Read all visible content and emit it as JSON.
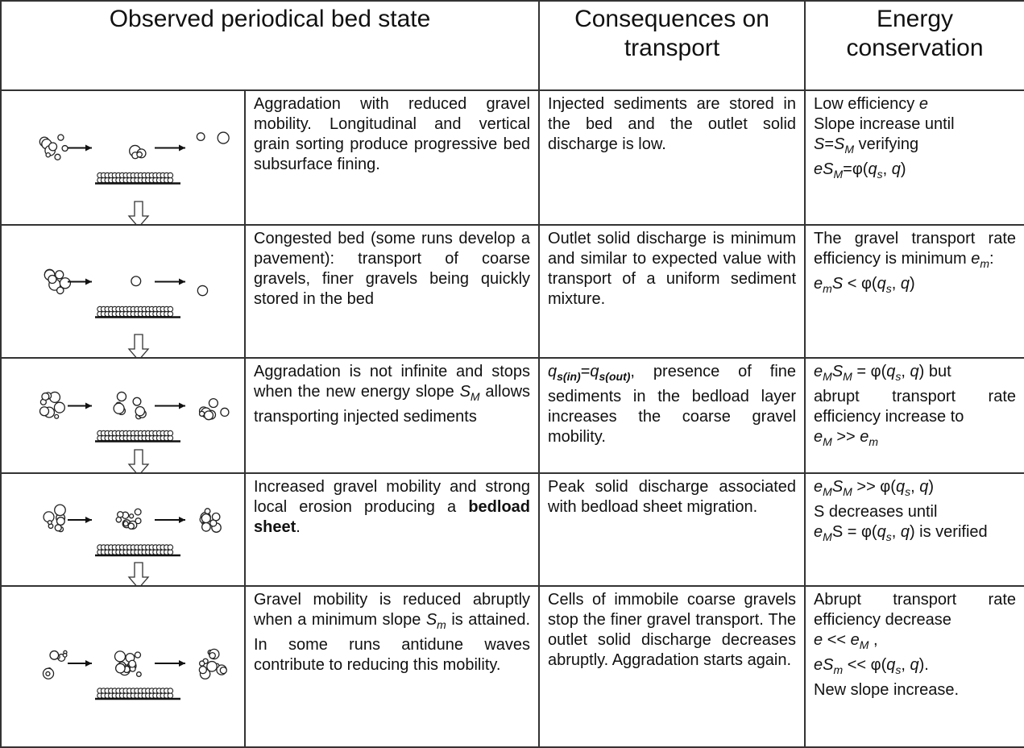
{
  "table": {
    "header": [
      "Observed periodical bed state",
      "Consequences on transport",
      "Energy conservation"
    ],
    "rows": [
      {
        "description": [
          [
            "Aggradation with reduced gravel mobility. Longitudinal and vertical grain sorting produce progressive bed subsurface fining."
          ]
        ],
        "transport": [
          [
            "Injected sediments are stored in the bed and the outlet solid discharge is low."
          ]
        ],
        "energy": [
          [
            "Low efficiency ",
            {
              "text": "e",
              "style": "italic"
            }
          ],
          [
            "Slope increase until"
          ],
          [
            {
              "text": "S",
              "style": "italic"
            },
            "=",
            {
              "text": "S",
              "style": "italic"
            },
            {
              "text": "M",
              "style": "sub"
            },
            " verifying"
          ],
          [
            {
              "text": "eS",
              "style": "italic"
            },
            {
              "text": "M",
              "style": "sub"
            },
            "=φ(",
            {
              "text": "q",
              "style": "italic"
            },
            {
              "text": "s",
              "style": "sub"
            },
            ", ",
            {
              "text": "q",
              "style": "italic"
            },
            ")"
          ]
        ]
      },
      {
        "description": [
          [
            "Congested bed (some runs develop a pavement): transport of coarse gravels, finer gravels being quickly stored in the bed"
          ]
        ],
        "transport": [
          [
            "Outlet solid discharge is minimum and similar to expected value with transport of a uniform sediment mixture."
          ]
        ],
        "energy": [
          [
            "The gravel transport rate efficiency is minimum ",
            {
              "text": "e",
              "style": "italic"
            },
            {
              "text": "m",
              "style": "sub"
            },
            ":"
          ],
          [
            {
              "text": "e",
              "style": "italic"
            },
            {
              "text": "m",
              "style": "sub"
            },
            {
              "text": "S",
              "style": "italic"
            },
            " < φ(",
            {
              "text": "q",
              "style": "italic"
            },
            {
              "text": "s",
              "style": "sub"
            },
            ", ",
            {
              "text": "q",
              "style": "italic"
            },
            ")"
          ]
        ]
      },
      {
        "description": [
          [
            "Aggradation is not infinite and stops when the new energy slope ",
            {
              "text": "S",
              "style": "italic"
            },
            {
              "text": "M",
              "style": "sub"
            },
            " allows transporting injected sediments"
          ]
        ],
        "transport": [
          [
            {
              "text": "q",
              "style": "italic"
            },
            {
              "text": "s(in)",
              "style": "sub-bold"
            },
            "=",
            {
              "text": "q",
              "style": "italic"
            },
            {
              "text": "s(out)",
              "style": "sub-bold"
            },
            ", presence of fine sediments in the bedload layer increases the coarse gravel mobility."
          ]
        ],
        "energy": [
          [
            {
              "text": "e",
              "style": "italic"
            },
            {
              "text": "M",
              "style": "sub"
            },
            {
              "text": "S",
              "style": "italic"
            },
            {
              "text": "M",
              "style": "sub"
            },
            " = φ(",
            {
              "text": "q",
              "style": "italic"
            },
            {
              "text": "s",
              "style": "sub"
            },
            ", ",
            {
              "text": "q",
              "style": "italic"
            },
            ") but"
          ],
          [
            "abrupt transport rate efficiency increase to"
          ],
          [
            {
              "text": "e",
              "style": "italic"
            },
            {
              "text": "M",
              "style": "sub"
            },
            " >> ",
            {
              "text": "e",
              "style": "italic"
            },
            {
              "text": "m",
              "style": "sub"
            }
          ]
        ]
      },
      {
        "description": [
          [
            "Increased gravel mobility and strong local erosion producing a ",
            {
              "text": "bedload sheet",
              "style": "bold"
            },
            "."
          ]
        ],
        "transport": [
          [
            "Peak solid discharge associated with bedload sheet migration."
          ]
        ],
        "energy": [
          [
            {
              "text": "e",
              "style": "italic"
            },
            {
              "text": "M",
              "style": "sub"
            },
            {
              "text": "S",
              "style": "italic"
            },
            {
              "text": "M",
              "style": "sub"
            },
            " >> φ(",
            {
              "text": "q",
              "style": "italic"
            },
            {
              "text": "s",
              "style": "sub"
            },
            ", ",
            {
              "text": "q",
              "style": "italic"
            },
            ")"
          ],
          [
            "S decreases until"
          ],
          [
            {
              "text": "e",
              "style": "italic"
            },
            {
              "text": "M",
              "style": "sub"
            },
            "S = φ(",
            {
              "text": "q",
              "style": "italic"
            },
            {
              "text": "s",
              "style": "sub"
            },
            ", ",
            {
              "text": "q",
              "style": "italic"
            },
            ") is verified"
          ]
        ]
      },
      {
        "description": [
          [
            "Gravel mobility is reduced abruptly when a minimum slope ",
            {
              "text": "S",
              "style": "italic"
            },
            {
              "text": "m",
              "style": "sub"
            },
            " is attained. In some runs antidune waves contribute to reducing this mobility."
          ]
        ],
        "transport": [
          [
            "Cells of immobile coarse gravels stop the finer gravel transport. The outlet solid discharge decreases abruptly. Aggradation starts again."
          ]
        ],
        "energy": [
          [
            "Abrupt transport rate efficiency decrease"
          ],
          [
            {
              "text": "e",
              "style": "italic"
            },
            " << ",
            {
              "text": "e",
              "style": "italic"
            },
            {
              "text": "M",
              "style": "sub"
            },
            " ,"
          ],
          [
            {
              "text": "eS",
              "style": "italic"
            },
            {
              "text": "m",
              "style": "sub"
            },
            " << φ(",
            {
              "text": "q",
              "style": "italic"
            },
            {
              "text": "s",
              "style": "sub"
            },
            ", ",
            {
              "text": "q",
              "style": "italic"
            },
            ")."
          ],
          [
            "New slope increase."
          ]
        ]
      }
    ]
  }
}
